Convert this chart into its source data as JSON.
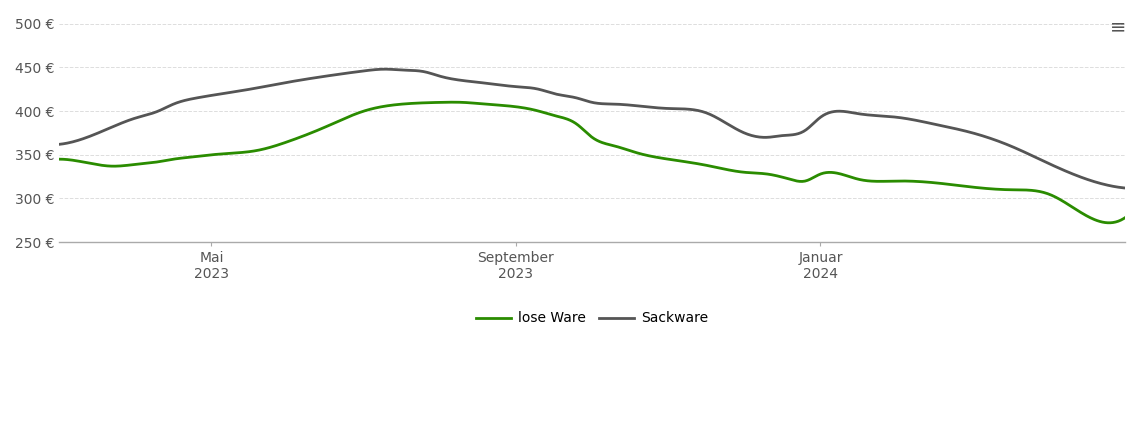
{
  "background_color": "#ffffff",
  "plot_bg_color": "#ffffff",
  "grid_color": "#dddddd",
  "ylim": [
    250,
    510
  ],
  "yticks": [
    250,
    300,
    350,
    400,
    450,
    500
  ],
  "x_tick_labels": [
    "Mai\n2023",
    "September\n2023",
    "Januar\n2024"
  ],
  "x_tick_positions": [
    2,
    6,
    10
  ],
  "lose_ware_color": "#2a8c00",
  "sackware_color": "#555555",
  "lose_ware_label": "lose Ware",
  "sackware_label": "Sackware",
  "line_width": 2.0,
  "xlim": [
    0,
    14
  ],
  "lose_ware_x": [
    0.0,
    0.3,
    0.7,
    1.0,
    1.3,
    1.5,
    1.8,
    2.0,
    2.3,
    2.6,
    3.0,
    3.5,
    4.0,
    4.5,
    5.0,
    5.3,
    5.6,
    6.0,
    6.3,
    6.5,
    6.8,
    7.0,
    7.3,
    7.6,
    8.0,
    8.5,
    9.0,
    9.3,
    9.6,
    9.8,
    10.0,
    10.5,
    11.0,
    11.5,
    12.0,
    12.5,
    13.0,
    13.5,
    14.0
  ],
  "lose_ware_y": [
    345,
    342,
    337,
    339,
    342,
    345,
    348,
    350,
    352,
    355,
    365,
    382,
    400,
    408,
    410,
    410,
    408,
    405,
    400,
    395,
    385,
    370,
    360,
    352,
    345,
    338,
    330,
    328,
    322,
    320,
    328,
    322,
    320,
    318,
    313,
    310,
    305,
    280,
    278
  ],
  "sackware_x": [
    0.0,
    0.3,
    0.7,
    1.0,
    1.3,
    1.5,
    1.8,
    2.0,
    2.5,
    3.0,
    3.5,
    4.0,
    4.3,
    4.5,
    4.8,
    5.0,
    5.3,
    5.6,
    6.0,
    6.3,
    6.5,
    6.8,
    7.0,
    7.3,
    7.6,
    8.0,
    8.5,
    9.0,
    9.3,
    9.5,
    9.8,
    10.0,
    10.5,
    11.0,
    11.5,
    12.0,
    12.5,
    13.0,
    13.5,
    14.0
  ],
  "sackware_y": [
    362,
    368,
    382,
    392,
    400,
    408,
    415,
    418,
    425,
    433,
    440,
    446,
    448,
    447,
    445,
    440,
    435,
    432,
    428,
    425,
    420,
    415,
    410,
    408,
    406,
    403,
    398,
    375,
    370,
    372,
    378,
    393,
    397,
    393,
    385,
    375,
    360,
    340,
    322,
    312
  ]
}
